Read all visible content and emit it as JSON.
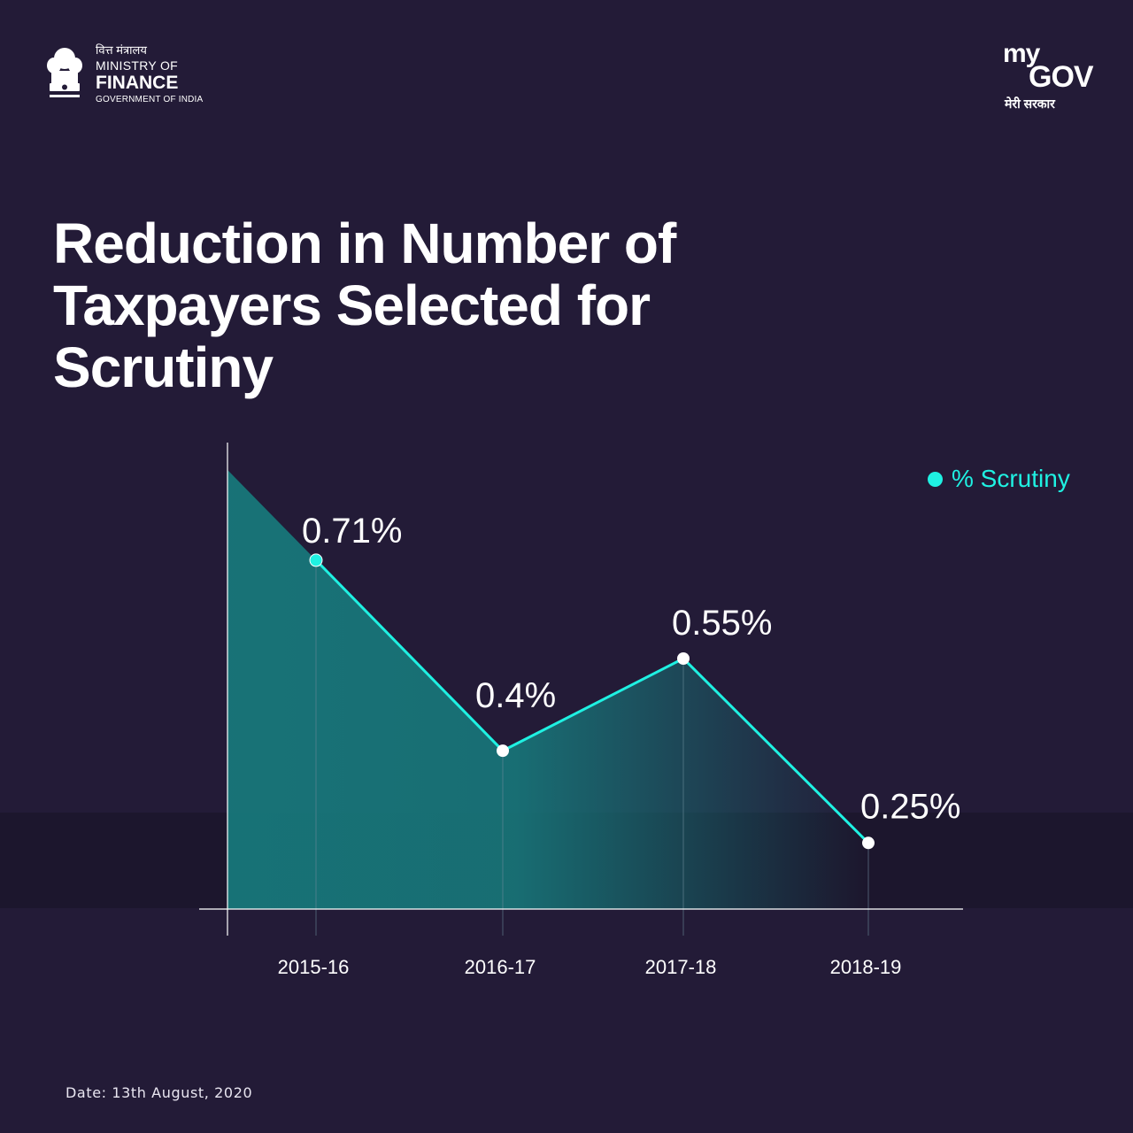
{
  "header": {
    "ministry_hindi": "वित्त मंत्रालय",
    "ministry_line1": "MINISTRY OF",
    "ministry_line2": "FINANCE",
    "ministry_line3": "GOVERNMENT OF INDIA",
    "emblem_icon": "national-emblem-icon",
    "mygov_my": "my",
    "mygov_gov": "GOV",
    "mygov_hindi": "मेरी सरकार"
  },
  "title": "Reduction in Number of Taxpayers Selected for Scrutiny",
  "legend": {
    "label": "% Scrutiny"
  },
  "date_text": "Date: 13th August, 2020",
  "colors": {
    "background": "#231b37",
    "accent": "#1ff1e2",
    "area": "#17777a",
    "white": "#ffffff"
  },
  "chart_data": {
    "type": "line",
    "categories": [
      "2015-16",
      "2016-17",
      "2017-18",
      "2018-19"
    ],
    "series": [
      {
        "name": "% Scrutiny",
        "values": [
          0.71,
          0.4,
          0.55,
          0.25
        ],
        "labels": [
          "0.71%",
          "0.4%",
          "0.55%",
          "0.25%"
        ]
      }
    ],
    "title": "Reduction in Number of Taxpayers Selected for Scrutiny",
    "xlabel": "",
    "ylabel": "",
    "ylim": [
      0.2,
      0.83
    ],
    "grid": false,
    "legend_position": "top-right"
  }
}
